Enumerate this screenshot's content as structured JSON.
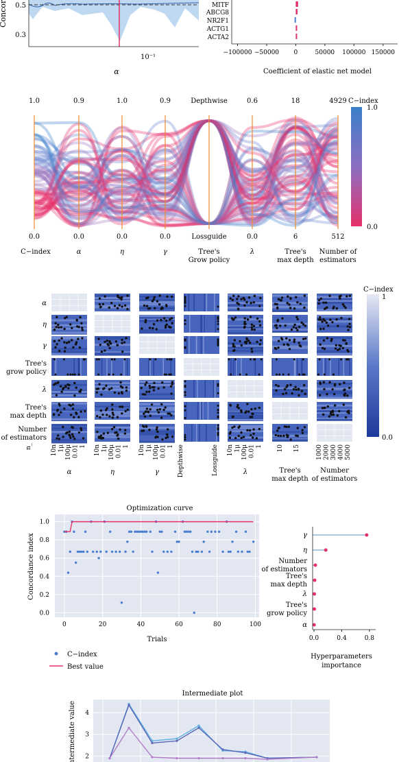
{
  "colors": {
    "panel_bg": "#e3e7f1",
    "blue": "#4477c4",
    "blue_fill": "#b8d4ef",
    "pink": "#e5306a",
    "orange_axis": "#f08a2c",
    "grid": "#ffffff",
    "purple": "#8c6fc2",
    "cyan": "#5fb0e0"
  },
  "panel_a": {
    "ylabel": "Concordance",
    "ticks_y": [
      "0.5",
      "0.3"
    ],
    "ticks_x": [
      "10⁻¹"
    ],
    "xlabel": "α"
  },
  "panel_b": {
    "genes": [
      "MITF",
      "ABCG8",
      "NR2F1",
      "ACTG1",
      "ACTA2"
    ],
    "values": [
      4000,
      3000,
      -2000,
      1500,
      800
    ],
    "xticks": [
      "−100000",
      "−50000",
      "0",
      "50000",
      "100000",
      "150000"
    ],
    "xlabel": "Coefficient of elastic net model"
  },
  "parallel": {
    "top_labels": [
      "1.0",
      "0.9",
      "1.0",
      "0.9",
      "Depthwise",
      "0.6",
      "18",
      "4929"
    ],
    "bottom_labels": [
      "0.0",
      "0.0",
      "0.0",
      "0.0",
      "Lossguide",
      "0.0",
      "6",
      "512"
    ],
    "axis_names": [
      "C−index",
      "α",
      "η",
      "γ",
      "Tree's\nGrow policy",
      "λ",
      "Tree's\nmax depth",
      "Number of\nestimators"
    ],
    "colorbar_title": "C−index",
    "colorbar_top": "1.0",
    "colorbar_bottom": "0.0"
  },
  "matrix": {
    "row_labels": [
      "α",
      "η",
      "γ",
      "Tree's\ngrow policy",
      "λ",
      "Tree's\nmax depth",
      "Number\nof estimators"
    ],
    "corner_label": "n_",
    "tick_groups": [
      [
        "10n",
        "1μ",
        "100μ",
        "0.01",
        "1"
      ],
      [
        "10n",
        "1μ",
        "100μ",
        "0.01",
        "1"
      ],
      [
        "10n",
        "1μ",
        "100μ",
        "0.01",
        "1"
      ],
      [
        "Depthwise",
        "Lossguide"
      ],
      [
        "10n",
        "1μ",
        "100μ",
        "0.01",
        "1"
      ],
      [
        "10",
        "15"
      ],
      [
        "1000",
        "2000",
        "3000",
        "4000",
        "5000"
      ]
    ],
    "col_names": [
      "α",
      "η",
      "γ",
      "",
      "λ",
      "Tree's\nmax depth",
      "Number\nof estimators"
    ],
    "colorbar_title": "C−index",
    "colorbar_top": "1",
    "colorbar_bottom": "0.0"
  },
  "chart_data": [
    {
      "type": "scatter",
      "title": "Optimization curve",
      "xlabel": "Trials",
      "ylabel": "Concordance index",
      "xlim": [
        -5,
        102
      ],
      "ylim": [
        -0.05,
        1.08
      ],
      "xticks": [
        0,
        20,
        40,
        60,
        80,
        100
      ],
      "yticks": [
        0.0,
        0.2,
        0.4,
        0.6,
        0.8,
        1.0
      ],
      "legend": [
        "C−index",
        "Best value"
      ],
      "points": [
        [
          0,
          0.89
        ],
        [
          1,
          0.89
        ],
        [
          2,
          0.44
        ],
        [
          3,
          0.67
        ],
        [
          4,
          1.0
        ],
        [
          5,
          0.89
        ],
        [
          6,
          0.55
        ],
        [
          7,
          0.67
        ],
        [
          8,
          0.67
        ],
        [
          9,
          0.67
        ],
        [
          10,
          0.67
        ],
        [
          11,
          0.89
        ],
        [
          12,
          0.67
        ],
        [
          14,
          1.0
        ],
        [
          15,
          0.67
        ],
        [
          17,
          0.67
        ],
        [
          18,
          0.6
        ],
        [
          19,
          0.67
        ],
        [
          21,
          1.0
        ],
        [
          22,
          0.67
        ],
        [
          24,
          0.89
        ],
        [
          25,
          0.67
        ],
        [
          27,
          0.67
        ],
        [
          29,
          0.67
        ],
        [
          30,
          0.11
        ],
        [
          32,
          0.67
        ],
        [
          33,
          0.78
        ],
        [
          34,
          0.89
        ],
        [
          35,
          0.89
        ],
        [
          36,
          0.67
        ],
        [
          37,
          0.89
        ],
        [
          38,
          0.89
        ],
        [
          39,
          0.89
        ],
        [
          40,
          0.89
        ],
        [
          41,
          0.89
        ],
        [
          42,
          0.89
        ],
        [
          43,
          0.89
        ],
        [
          45,
          0.89
        ],
        [
          46,
          0.67
        ],
        [
          48,
          1.0
        ],
        [
          49,
          0.44
        ],
        [
          50,
          0.89
        ],
        [
          51,
          0.89
        ],
        [
          52,
          0.67
        ],
        [
          54,
          0.67
        ],
        [
          56,
          0.67
        ],
        [
          58,
          0.89
        ],
        [
          59,
          0.78
        ],
        [
          60,
          0.78
        ],
        [
          62,
          1.0
        ],
        [
          63,
          0.89
        ],
        [
          64,
          0.89
        ],
        [
          65,
          0.89
        ],
        [
          66,
          0.89
        ],
        [
          67,
          0.67
        ],
        [
          68,
          0.0
        ],
        [
          69,
          0.67
        ],
        [
          70,
          0.67
        ],
        [
          72,
          0.67
        ],
        [
          73,
          0.78
        ],
        [
          75,
          0.89
        ],
        [
          76,
          0.67
        ],
        [
          77,
          0.89
        ],
        [
          79,
          0.89
        ],
        [
          81,
          0.89
        ],
        [
          83,
          0.67
        ],
        [
          85,
          1.0
        ],
        [
          86,
          0.67
        ],
        [
          87,
          0.67
        ],
        [
          88,
          0.78
        ],
        [
          90,
          0.89
        ],
        [
          91,
          0.67
        ],
        [
          93,
          0.67
        ],
        [
          95,
          0.89
        ],
        [
          96,
          0.67
        ],
        [
          97,
          0.67
        ],
        [
          99,
          0.78
        ]
      ],
      "best_value": [
        [
          0,
          0.89
        ],
        [
          3,
          0.89
        ],
        [
          4,
          1.0
        ],
        [
          99,
          1.0
        ]
      ]
    },
    {
      "type": "bar",
      "xlabel": "Hyperparameters\nimportance",
      "categories": [
        "γ",
        "η",
        "Number\nof estimators",
        "Tree's\nmax depth",
        "λ",
        "Tree's\ngrow policy",
        "α"
      ],
      "values": [
        0.76,
        0.17,
        0.02,
        0.01,
        0.005,
        0.005,
        0.002
      ],
      "xlim": [
        -0.03,
        0.88
      ],
      "xticks": [
        "0.0",
        "0.4",
        "0.8"
      ]
    },
    {
      "type": "line",
      "title": "Intermediate plot",
      "ylabel": "Intermediate value",
      "yticks": [
        2,
        3,
        4
      ],
      "ylim": [
        1.6,
        4.6
      ],
      "x": [
        0,
        1,
        2,
        3,
        4,
        5,
        6,
        7,
        8
      ],
      "series": [
        {
          "values": [
            1.9,
            4.4,
            2.7,
            2.8,
            3.4,
            2.25,
            2.2,
            1.9,
            1.95
          ]
        },
        {
          "values": [
            1.9,
            4.35,
            2.6,
            2.7,
            3.3,
            2.3,
            2.15,
            1.9,
            1.95
          ]
        },
        {
          "values": [
            1.9,
            3.3,
            1.95,
            1.9,
            1.9,
            1.9,
            1.9,
            1.85,
            1.95
          ]
        }
      ]
    }
  ]
}
